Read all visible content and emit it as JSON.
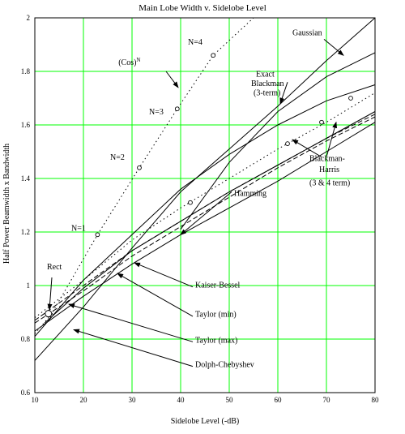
{
  "chart_data": {
    "type": "line",
    "title": "Main Lobe Width v. Sidelobe Level",
    "xlabel": "Sidelobe Level (-dB)",
    "ylabel": "Half Power Beamwidth x Bandwidth",
    "xlim": [
      10,
      80
    ],
    "ylim": [
      0.6,
      2.0
    ],
    "x_ticks": [
      10,
      20,
      30,
      40,
      50,
      60,
      70,
      80
    ],
    "y_ticks": [
      0.6,
      0.8,
      1,
      1.2,
      1.4,
      1.6,
      1.8,
      2
    ],
    "grid": true,
    "grid_color": "#00ff00",
    "series": [
      {
        "name": "(Cos)^N",
        "style": "dotted",
        "x": [
          10,
          13.3,
          22.9,
          31.5,
          39.3,
          46.7,
          55
        ],
        "y": [
          0.82,
          0.89,
          1.19,
          1.44,
          1.66,
          1.86,
          2.0
        ],
        "markers": {
          "x": [
            13.3,
            22.9,
            31.5,
            39.3,
            46.7
          ],
          "y": [
            0.89,
            1.19,
            1.44,
            1.66,
            1.86
          ]
        }
      },
      {
        "name": "Gaussian",
        "style": "solid",
        "x": [
          10,
          20,
          30,
          40,
          50,
          60,
          70,
          80
        ],
        "y": [
          0.72,
          0.92,
          1.14,
          1.35,
          1.51,
          1.67,
          1.84,
          2.0
        ]
      },
      {
        "name": "Exact Blackman (3-term)",
        "style": "solid",
        "x": [
          40,
          50,
          60,
          70,
          80
        ],
        "y": [
          1.21,
          1.46,
          1.65,
          1.78,
          1.87
        ]
      },
      {
        "name": "Blackman-Harris (3 & 4 term)",
        "style": "solid",
        "x": [
          10,
          20,
          30,
          40,
          50,
          60,
          70,
          80
        ],
        "y": [
          0.81,
          1.02,
          1.19,
          1.36,
          1.49,
          1.6,
          1.69,
          1.75
        ]
      },
      {
        "name": "Hamming",
        "style": "solid",
        "x": [
          12,
          20,
          30,
          40,
          50,
          60,
          70,
          80
        ],
        "y": [
          0.86,
          0.99,
          1.13,
          1.24,
          1.35,
          1.45,
          1.55,
          1.65
        ]
      },
      {
        "name": "Kaiser-Bessel",
        "style": "dotted",
        "x": [
          10,
          20,
          30,
          40,
          50,
          60,
          70,
          80
        ],
        "y": [
          0.88,
          1.02,
          1.17,
          1.29,
          1.4,
          1.51,
          1.61,
          1.72
        ],
        "markers": {
          "x": [
            42,
            62,
            69,
            75
          ],
          "y": [
            1.31,
            1.53,
            1.61,
            1.7
          ]
        }
      },
      {
        "name": "Taylor (min)",
        "style": "dashed",
        "x": [
          10,
          20,
          30,
          40,
          50,
          60,
          70,
          80
        ],
        "y": [
          0.87,
          1.0,
          1.13,
          1.24,
          1.35,
          1.45,
          1.55,
          1.64
        ]
      },
      {
        "name": "Taylor (max)",
        "style": "dashed",
        "x": [
          10,
          20,
          30,
          40,
          50,
          60,
          70,
          80
        ],
        "y": [
          0.86,
          0.98,
          1.11,
          1.22,
          1.33,
          1.44,
          1.54,
          1.63
        ]
      },
      {
        "name": "Dolph-Chebyshev",
        "style": "solid",
        "x": [
          10,
          20,
          30,
          40,
          50,
          60,
          70,
          80
        ],
        "y": [
          0.83,
          0.96,
          1.08,
          1.19,
          1.29,
          1.39,
          1.5,
          1.61
        ]
      }
    ],
    "annotations": [
      {
        "text": "Rect",
        "x": 12.5,
        "y": 1.06
      },
      {
        "text": "N=1",
        "x": 17.5,
        "y": 1.205
      },
      {
        "text": "N=2",
        "x": 25.5,
        "y": 1.47
      },
      {
        "text": "N=3",
        "x": 33.5,
        "y": 1.64
      },
      {
        "text": "N=4",
        "x": 41.5,
        "y": 1.9
      },
      {
        "text": "(Cos)",
        "sup": "N",
        "x": 27.2,
        "y": 1.825
      },
      {
        "text": "Gaussian",
        "x": 63,
        "y": 1.935
      },
      {
        "text": "Exact",
        "x": 55.5,
        "y": 1.78
      },
      {
        "text": "Blackman",
        "x": 54.5,
        "y": 1.745
      },
      {
        "text": "(3-term)",
        "x": 55,
        "y": 1.71
      },
      {
        "text": "Blackman-",
        "x": 66.5,
        "y": 1.465
      },
      {
        "text": "Harris",
        "x": 68.5,
        "y": 1.425
      },
      {
        "text": "(3 & 4 term)",
        "x": 66.5,
        "y": 1.375
      },
      {
        "text": "Hamming",
        "x": 51,
        "y": 1.335
      },
      {
        "text": "Kaiser-Bessel",
        "x": 43,
        "y": 0.992
      },
      {
        "text": "Taylor (min)",
        "x": 43,
        "y": 0.883
      },
      {
        "text": "Taylor (max)",
        "x": 43,
        "y": 0.787
      },
      {
        "text": "Dolph-Chebyshev",
        "x": 43,
        "y": 0.695
      }
    ],
    "arrows": [
      {
        "name": "gaussian-arrow",
        "from": [
          69.5,
          1.92
        ],
        "to": [
          73.5,
          1.86
        ]
      },
      {
        "name": "cosn-arrow",
        "from": [
          37,
          1.8
        ],
        "to": [
          39.5,
          1.74
        ]
      },
      {
        "name": "blackman-arrow",
        "from": [
          62,
          1.76
        ],
        "to": [
          60.5,
          1.68
        ]
      },
      {
        "name": "blackman-harris-arrow-1",
        "from": [
          70,
          1.48
        ],
        "to": [
          72,
          1.61
        ]
      },
      {
        "name": "blackman-harris-arrow-2",
        "from": [
          69,
          1.48
        ],
        "to": [
          63,
          1.545
        ]
      },
      {
        "name": "hamming-arrow",
        "from": [
          50.5,
          1.35
        ],
        "to": [
          40,
          1.19
        ]
      },
      {
        "name": "rect-arrow",
        "from": [
          13.5,
          1.03
        ],
        "to": [
          13,
          0.91
        ]
      },
      {
        "name": "kaiser-bessel-arrow",
        "from": [
          42.5,
          0.995
        ],
        "to": [
          30.5,
          1.085
        ]
      },
      {
        "name": "taylor-min-arrow",
        "from": [
          42.5,
          0.885
        ],
        "to": [
          27,
          1.045
        ]
      },
      {
        "name": "taylor-max-arrow",
        "from": [
          42.5,
          0.79
        ],
        "to": [
          17,
          0.93
        ]
      },
      {
        "name": "dolph-arrow",
        "from": [
          42.5,
          0.698
        ],
        "to": [
          18,
          0.835
        ]
      }
    ]
  }
}
